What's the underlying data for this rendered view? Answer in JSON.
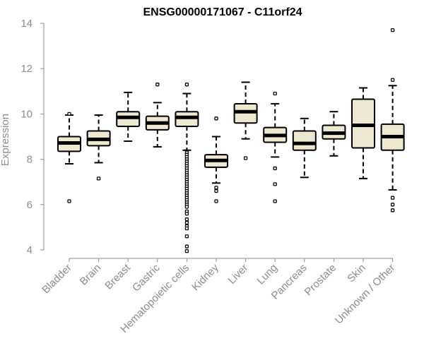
{
  "chart_data": {
    "type": "boxplot",
    "title": "ENSG00000171067 - C11orf24",
    "xlabel": "",
    "ylabel": "Expression",
    "ylim": [
      4,
      14
    ],
    "yticks": [
      4,
      6,
      8,
      10,
      12,
      14
    ],
    "categories": [
      "Bladder",
      "Brain",
      "Breast",
      "Gastric",
      "Hematopoietic cells",
      "Kidney",
      "Liver",
      "Lung",
      "Pancreas",
      "Prostate",
      "Skin",
      "Unknown / Other"
    ],
    "boxes": [
      {
        "name": "Bladder",
        "whisker_low": 7.8,
        "q1": 8.35,
        "median": 8.72,
        "q3": 9.0,
        "whisker_high": 9.95,
        "outliers": [
          6.15,
          10.0
        ]
      },
      {
        "name": "Brain",
        "whisker_low": 7.85,
        "q1": 8.6,
        "median": 8.88,
        "q3": 9.25,
        "whisker_high": 9.95,
        "outliers": [
          7.15
        ]
      },
      {
        "name": "Breast",
        "whisker_low": 8.8,
        "q1": 9.45,
        "median": 9.85,
        "q3": 10.1,
        "whisker_high": 10.95,
        "outliers": []
      },
      {
        "name": "Gastric",
        "whisker_low": 8.55,
        "q1": 9.3,
        "median": 9.6,
        "q3": 9.9,
        "whisker_high": 10.5,
        "outliers": [
          11.3
        ]
      },
      {
        "name": "Hematopoietic cells",
        "whisker_low": 8.4,
        "q1": 9.45,
        "median": 9.85,
        "q3": 10.1,
        "whisker_high": 10.9,
        "outliers": [
          11.3,
          8.3,
          8.2,
          8.1,
          8.0,
          7.9,
          7.8,
          7.7,
          7.6,
          7.5,
          7.4,
          7.3,
          7.2,
          7.1,
          7.0,
          6.9,
          6.8,
          6.7,
          6.6,
          6.5,
          6.4,
          6.3,
          6.2,
          6.1,
          6.0,
          5.9,
          5.7,
          5.6,
          5.35,
          5.2,
          5.05,
          4.95,
          4.6,
          4.15,
          3.95
        ]
      },
      {
        "name": "Kidney",
        "whisker_low": 6.95,
        "q1": 7.65,
        "median": 7.95,
        "q3": 8.2,
        "whisker_high": 9.0,
        "outliers": [
          9.8,
          6.75,
          6.6,
          6.15
        ]
      },
      {
        "name": "Liver",
        "whisker_low": 8.9,
        "q1": 9.6,
        "median": 10.1,
        "q3": 10.45,
        "whisker_high": 11.4,
        "outliers": [
          8.05
        ]
      },
      {
        "name": "Lung",
        "whisker_low": 8.1,
        "q1": 8.75,
        "median": 9.05,
        "q3": 9.4,
        "whisker_high": 10.45,
        "outliers": [
          10.9,
          7.6,
          6.9,
          6.15
        ]
      },
      {
        "name": "Pancreas",
        "whisker_low": 7.2,
        "q1": 8.4,
        "median": 8.7,
        "q3": 9.25,
        "whisker_high": 9.8,
        "outliers": []
      },
      {
        "name": "Prostate",
        "whisker_low": 8.15,
        "q1": 8.9,
        "median": 9.15,
        "q3": 9.5,
        "whisker_high": 10.1,
        "outliers": []
      },
      {
        "name": "Skin",
        "whisker_low": 7.15,
        "q1": 8.5,
        "median": 9.5,
        "q3": 10.65,
        "whisker_high": 11.15,
        "outliers": []
      },
      {
        "name": "Unknown / Other",
        "whisker_low": 6.65,
        "q1": 8.4,
        "median": 9.0,
        "q3": 9.55,
        "whisker_high": 11.25,
        "outliers": [
          13.7,
          11.5,
          6.3,
          6.0,
          5.75
        ]
      }
    ],
    "colors": {
      "box_fill": "#efe8d0",
      "box_stroke": "#000000",
      "median": "#000000",
      "axis": "#8c8c8c",
      "label": "#8c8c8c"
    },
    "grid": false
  }
}
